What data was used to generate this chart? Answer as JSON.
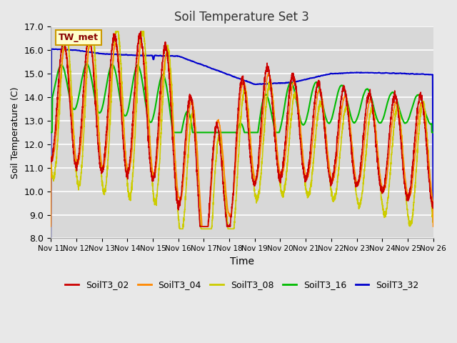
{
  "title": "Soil Temperature Set 3",
  "xlabel": "Time",
  "ylabel": "Soil Temperature (C)",
  "ylim": [
    8.0,
    17.0
  ],
  "yticks": [
    8.0,
    9.0,
    10.0,
    11.0,
    12.0,
    13.0,
    14.0,
    15.0,
    16.0,
    17.0
  ],
  "xtick_labels": [
    "Nov 11",
    "Nov 12",
    "Nov 13",
    "Nov 14",
    "Nov 15",
    "Nov 16",
    "Nov 17",
    "Nov 18",
    "Nov 19",
    "Nov 20",
    "Nov 21",
    "Nov 22",
    "Nov 23",
    "Nov 24",
    "Nov 25",
    "Nov 26"
  ],
  "colors": {
    "SoilT3_02": "#cc0000",
    "SoilT3_04": "#ff8800",
    "SoilT3_08": "#cccc00",
    "SoilT3_16": "#00bb00",
    "SoilT3_32": "#0000cc"
  },
  "legend_label": "TW_met",
  "legend_bg": "#ffffcc",
  "legend_border": "#cc9900",
  "fig_bg": "#e8e8e8",
  "plot_bg": "#d8d8d8",
  "grid_color": "#ffffff",
  "n_points": 3600
}
